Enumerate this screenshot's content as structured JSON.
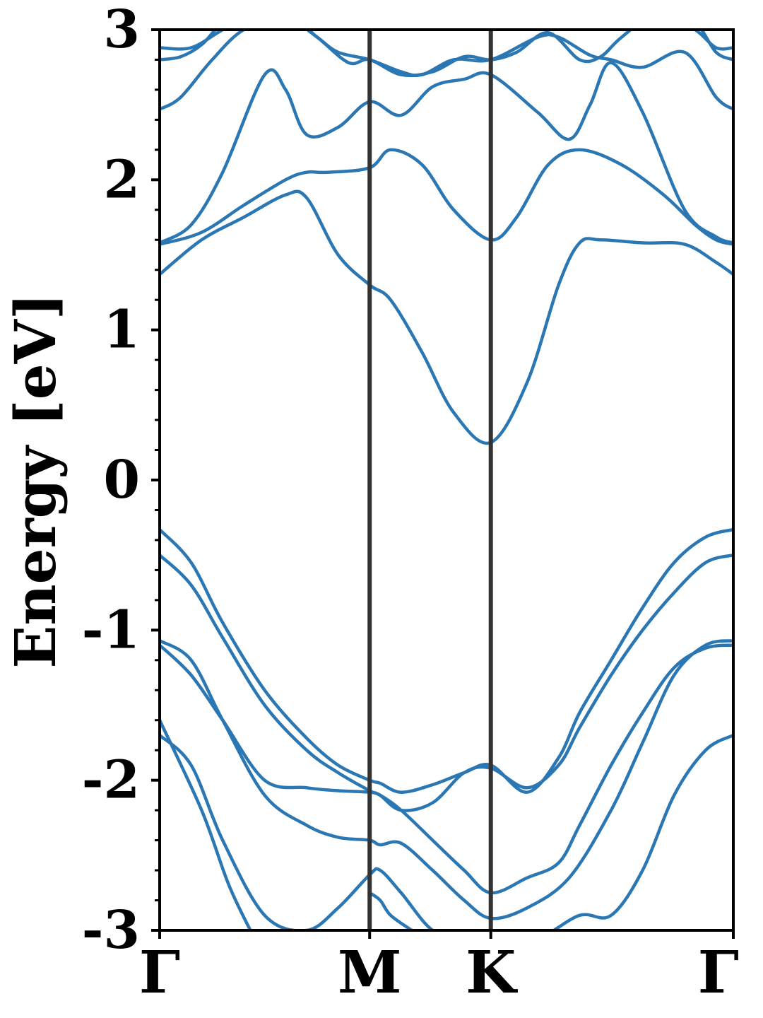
{
  "chart_data": {
    "type": "line",
    "xlabel": "",
    "ylabel": "Energy [eV]",
    "ylim": [
      -3,
      3
    ],
    "y_ticks": [
      "-3",
      "-2",
      "-1",
      "0",
      "1",
      "2",
      "3"
    ],
    "y_minor_step": 0.2,
    "x_ticks": [
      "Γ",
      "M",
      "K",
      "Γ"
    ],
    "x_tick_positions": [
      0,
      1,
      1.577,
      2.732
    ],
    "xlim": [
      0,
      2.732
    ],
    "grid": false,
    "legend": "none",
    "colors": {
      "bands": "#2a77b4",
      "kpath_lines": "#333333",
      "axes": "#000000"
    },
    "series": [
      {
        "x": [
          0,
          0.15,
          0.3,
          0.5,
          0.7,
          0.85,
          1.0,
          1.05,
          1.15,
          1.3,
          1.45,
          1.577,
          1.8,
          2.0,
          2.15,
          2.3,
          2.45,
          2.6,
          2.732
        ],
        "y": [
          -1.7,
          -1.9,
          -2.4,
          -2.9,
          -3.0,
          -2.85,
          -2.63,
          -2.6,
          -2.75,
          -3.0,
          -3.05,
          -3.05,
          -3.05,
          -2.9,
          -2.9,
          -2.6,
          -2.1,
          -1.8,
          -1.7
        ]
      },
      {
        "x": [
          0,
          0.15,
          0.3,
          0.5,
          0.7,
          0.85,
          1.0,
          1.05,
          1.15,
          1.3,
          1.45,
          1.577,
          1.75,
          1.95,
          2.15,
          2.3,
          2.45,
          2.6,
          2.732
        ],
        "y": [
          -1.07,
          -1.2,
          -1.6,
          -2.1,
          -2.3,
          -2.38,
          -2.4,
          -2.43,
          -2.42,
          -2.6,
          -2.8,
          -2.92,
          -2.85,
          -2.65,
          -2.2,
          -1.75,
          -1.3,
          -1.1,
          -1.07
        ]
      },
      {
        "x": [
          0,
          0.15,
          0.3,
          0.5,
          0.7,
          0.85,
          1.0,
          1.05,
          1.15,
          1.3,
          1.45,
          1.577,
          1.75,
          1.9,
          2.0,
          2.15,
          2.3,
          2.45,
          2.6,
          2.732
        ],
        "y": [
          -1.1,
          -1.3,
          -1.6,
          -2.0,
          -2.05,
          -2.07,
          -2.08,
          -2.1,
          -2.2,
          -2.4,
          -2.6,
          -2.75,
          -2.65,
          -2.55,
          -2.3,
          -1.9,
          -1.55,
          -1.25,
          -1.12,
          -1.1
        ]
      },
      {
        "x": [
          0,
          0.15,
          0.3,
          0.5,
          0.7,
          0.85,
          1.0,
          1.05,
          1.15,
          1.3,
          1.45,
          1.577,
          1.75,
          1.9,
          2.0,
          2.15,
          2.3,
          2.45,
          2.6,
          2.732
        ],
        "y": [
          -0.5,
          -0.7,
          -1.05,
          -1.5,
          -1.8,
          -1.95,
          -2.07,
          -2.1,
          -2.2,
          -2.15,
          -1.95,
          -1.92,
          -2.05,
          -1.9,
          -1.65,
          -1.3,
          -1.0,
          -0.75,
          -0.55,
          -0.5
        ]
      },
      {
        "x": [
          0,
          0.15,
          0.3,
          0.5,
          0.7,
          0.85,
          1.0,
          1.05,
          1.15,
          1.3,
          1.45,
          1.577,
          1.75,
          1.9,
          2.0,
          2.15,
          2.3,
          2.45,
          2.6,
          2.732
        ],
        "y": [
          -0.33,
          -0.55,
          -0.95,
          -1.4,
          -1.72,
          -1.9,
          -2.0,
          -2.02,
          -2.08,
          -2.03,
          -1.95,
          -1.9,
          -2.08,
          -1.85,
          -1.55,
          -1.2,
          -0.85,
          -0.55,
          -0.38,
          -0.33
        ]
      },
      {
        "x": [
          0,
          0.2,
          0.4,
          0.6,
          0.7,
          0.85,
          1.0,
          1.1,
          1.25,
          1.4,
          1.577,
          1.75,
          1.9,
          2.0,
          2.1,
          2.3,
          2.5,
          2.65,
          2.732
        ],
        "y": [
          1.37,
          1.6,
          1.75,
          1.9,
          1.88,
          1.5,
          1.3,
          1.2,
          0.85,
          0.45,
          0.25,
          0.65,
          1.3,
          1.58,
          1.6,
          1.58,
          1.57,
          1.45,
          1.37
        ]
      },
      {
        "x": [
          0,
          0.2,
          0.4,
          0.6,
          0.7,
          0.8,
          1.0,
          1.1,
          1.25,
          1.4,
          1.577,
          1.7,
          1.85,
          2.0,
          2.2,
          2.4,
          2.55,
          2.65,
          2.732
        ],
        "y": [
          1.57,
          1.65,
          1.83,
          2.0,
          2.05,
          2.05,
          2.08,
          2.2,
          2.1,
          1.8,
          1.6,
          1.75,
          2.1,
          2.2,
          2.1,
          1.9,
          1.7,
          1.6,
          1.57
        ]
      },
      {
        "x": [
          0,
          0.15,
          0.3,
          0.5,
          0.6,
          0.7,
          0.85,
          1.0,
          1.15,
          1.3,
          1.45,
          1.577,
          1.8,
          1.95,
          2.05,
          2.15,
          2.3,
          2.5,
          2.65,
          2.732
        ],
        "y": [
          1.58,
          1.7,
          2.05,
          2.7,
          2.6,
          2.3,
          2.35,
          2.52,
          2.43,
          2.62,
          2.67,
          2.7,
          2.45,
          2.27,
          2.5,
          2.78,
          2.45,
          1.8,
          1.62,
          1.58
        ]
      },
      {
        "x": [
          0,
          0.1,
          0.25,
          0.4,
          0.6,
          0.75,
          0.85,
          1.0,
          1.15,
          1.25,
          1.4,
          1.577,
          1.8,
          1.9,
          2.05,
          2.15,
          2.3,
          2.5,
          2.65,
          2.732
        ],
        "y": [
          2.47,
          2.55,
          2.8,
          3.0,
          3.1,
          2.95,
          2.85,
          2.8,
          2.72,
          2.7,
          2.8,
          2.8,
          2.95,
          2.95,
          2.83,
          2.8,
          2.75,
          2.85,
          2.55,
          2.47
        ]
      },
      {
        "x": [
          0,
          0.1,
          0.2,
          0.3,
          0.45,
          0.6,
          0.75,
          0.9,
          1.0,
          1.15,
          1.3,
          1.45,
          1.577,
          1.7,
          1.85,
          2.0,
          2.1,
          2.2,
          2.4,
          2.55,
          2.65,
          2.732
        ],
        "y": [
          2.8,
          2.82,
          2.9,
          3.05,
          3.2,
          3.1,
          2.95,
          2.78,
          2.8,
          2.7,
          2.72,
          2.82,
          2.8,
          2.85,
          2.98,
          2.8,
          2.82,
          2.95,
          3.15,
          3.05,
          2.85,
          2.8
        ]
      },
      {
        "x": [
          0,
          0.15,
          0.3,
          0.5,
          2.2,
          2.4,
          2.55,
          2.65,
          2.732
        ],
        "y": [
          2.88,
          2.88,
          3.0,
          3.15,
          3.15,
          3.1,
          3.0,
          2.88,
          2.88
        ]
      },
      {
        "x": [
          1.0,
          1.05,
          1.1,
          1.2,
          1.25
        ],
        "y": [
          -2.75,
          -2.8,
          -2.9,
          -3.0,
          -3.05
        ]
      },
      {
        "x": [
          0,
          0.2,
          0.33,
          0.45
        ],
        "y": [
          -1.6,
          -2.2,
          -2.7,
          -3.05
        ]
      }
    ]
  }
}
